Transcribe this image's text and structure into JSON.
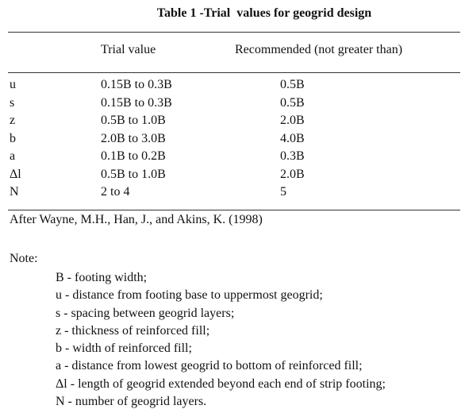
{
  "title": "Table 1 -Trial  values for geogrid design",
  "columns": {
    "trial": "Trial value",
    "recommended": "Recommended (not greater than)"
  },
  "rows": [
    {
      "symbol": "u",
      "trial": "0.15B to 0.3B",
      "recommended": "0.5B"
    },
    {
      "symbol": "s",
      "trial": "0.15B to 0.3B",
      "recommended": "0.5B"
    },
    {
      "symbol": "z",
      "trial": "0.5B to 1.0B",
      "recommended": "2.0B"
    },
    {
      "symbol": "b",
      "trial": "2.0B to 3.0B",
      "recommended": "4.0B"
    },
    {
      "symbol": "a",
      "trial": "0.1B to 0.2B",
      "recommended": "0.3B"
    },
    {
      "symbol": "Δl",
      "trial": "0.5B to 1.0B",
      "recommended": "2.0B"
    },
    {
      "symbol": "N",
      "trial": "2 to 4",
      "recommended": "5"
    }
  ],
  "source": "After Wayne, M.H., Han, J., and Akins, K. (1998)",
  "note_title": "Note:",
  "notes": [
    "B - footing width;",
    "u - distance from footing base to uppermost geogrid;",
    "s - spacing between geogrid layers;",
    "z - thickness of reinforced fill;",
    "b - width of reinforced fill;",
    "a - distance from lowest geogrid to bottom of reinforced fill;",
    "Δl - length of geogrid extended beyond each end of strip footing;",
    "N - number of geogrid layers."
  ]
}
